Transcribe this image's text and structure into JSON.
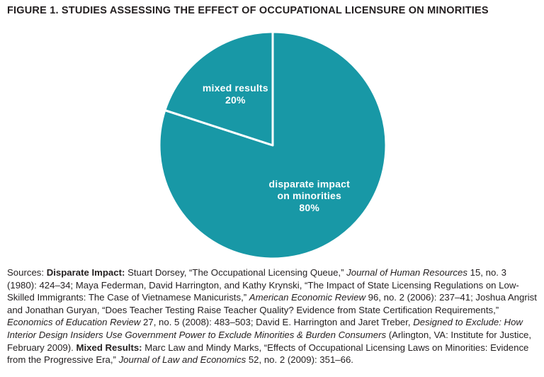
{
  "title": "FIGURE 1. STUDIES ASSESSING THE EFFECT OF OCCUPATIONAL LICENSURE ON MINORITIES",
  "colors": {
    "pie_teal": "#1898a6",
    "text": "#231f20",
    "background": "#ffffff",
    "slice_label": "#ffffff"
  },
  "chart_data": {
    "type": "pie",
    "title": "FIGURE 1. STUDIES ASSESSING THE EFFECT OF OCCUPATIONAL LICENSURE ON MINORITIES",
    "start_angle": -90,
    "diameter": 320,
    "separator_color": "#ffffff",
    "separator_width": 3,
    "label_color": "#ffffff",
    "legend": "none",
    "categories": [
      "disparate impact on minorities",
      "mixed results"
    ],
    "values": [
      80,
      20
    ],
    "slices": [
      {
        "id": "disparate-impact",
        "label": "disparate impact on minorities",
        "label_lines": [
          "disparate impact",
          "on minorities",
          "80%"
        ],
        "value": 80,
        "color": "#1898a6",
        "label_radius": 0.55
      },
      {
        "id": "mixed-results",
        "label": "mixed results",
        "label_lines": [
          "mixed results",
          "20%"
        ],
        "value": 20,
        "color": "#1898a6",
        "label_radius": 0.56
      }
    ]
  },
  "sources": {
    "segments": [
      {
        "t": "Sources: "
      },
      {
        "t": "Disparate Impact: ",
        "b": true
      },
      {
        "t": "Stuart Dorsey, “The Occupational Licensing Queue,” "
      },
      {
        "t": "Journal of Human Resources",
        "i": true
      },
      {
        "t": " 15, no. 3 (1980): 424–34; Maya Federman, David Harrington, and Kathy Krynski, “The Impact of State Licensing Regulations on Low-Skilled Immigrants: The Case of Vietnamese Manicurists,” "
      },
      {
        "t": "American Economic Review",
        "i": true
      },
      {
        "t": " 96, no. 2 (2006): 237–41; Joshua Angrist and Jonathan Guryan, “Does Teacher Testing Raise Teacher Quality? Evidence from State Certification Requirements,” "
      },
      {
        "t": "Economics of Education Review",
        "i": true
      },
      {
        "t": " 27, no. 5 (2008): 483–503; David E. Harrington and Jaret Treber, "
      },
      {
        "t": "Designed to Exclude: How Interior Design Insiders Use Government Power to Exclude Minorities & Burden Consumers",
        "i": true
      },
      {
        "t": " (Arlington, VA: Institute for Justice, February 2009). "
      },
      {
        "t": "Mixed Results: ",
        "b": true
      },
      {
        "t": "Marc Law and Mindy Marks, “Effects of Occupational Licensing Laws on Minorities: Evidence from the Progressive Era,” "
      },
      {
        "t": "Journal of Law and Economics",
        "i": true
      },
      {
        "t": " 52, no. 2 (2009): 351–66."
      }
    ]
  }
}
